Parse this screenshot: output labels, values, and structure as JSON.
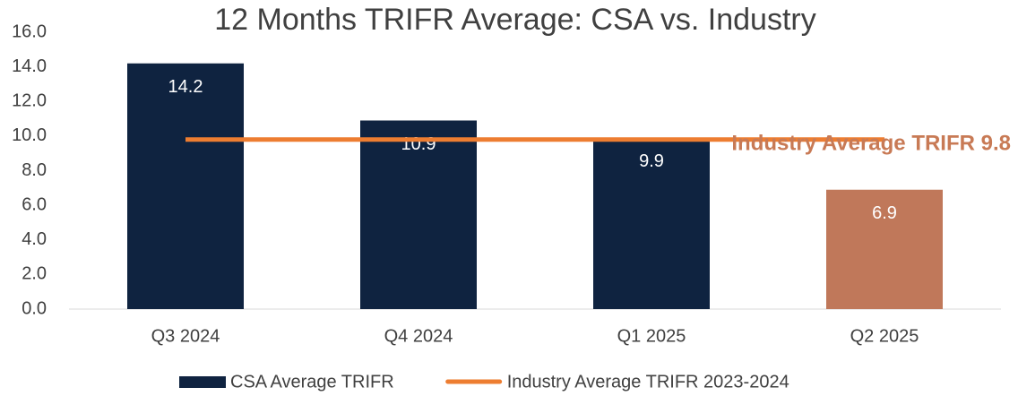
{
  "chart_data": {
    "type": "bar",
    "title": "12 Months TRIFR Average: CSA vs. Industry",
    "annotation": "Industry Average TRIFR 9.8",
    "annotation_color": "#c87a55",
    "categories": [
      "Q3 2024",
      "Q4 2024",
      "Q1 2025",
      "Q2 2025"
    ],
    "series": [
      {
        "name": "CSA Average TRIFR",
        "type": "bar",
        "colors": [
          "#0f2340",
          "#0f2340",
          "#0f2340",
          "#c0785a"
        ],
        "values": [
          14.2,
          10.9,
          9.9,
          6.9
        ]
      },
      {
        "name": "Industry Average TRIFR 2023-2024",
        "type": "line",
        "color": "#ed7d31",
        "values": [
          9.8,
          9.8,
          9.8,
          9.8
        ]
      }
    ],
    "ylim": [
      0,
      16
    ],
    "yticks": [
      {
        "value": 0,
        "label": "0.0"
      },
      {
        "value": 2,
        "label": "2.0"
      },
      {
        "value": 4,
        "label": "4.0"
      },
      {
        "value": 6,
        "label": "6.0"
      },
      {
        "value": 8,
        "label": "8.0"
      },
      {
        "value": 10,
        "label": "10.0"
      },
      {
        "value": 12,
        "label": "12.0"
      },
      {
        "value": 14,
        "label": "14.0"
      },
      {
        "value": 16,
        "label": "16.0"
      }
    ],
    "grid": false,
    "legend": "bottom"
  }
}
